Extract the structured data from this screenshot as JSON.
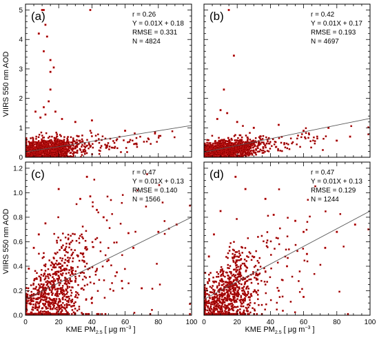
{
  "y_axis_label": "VIIRS 550 nm AOD",
  "x_axis_label_parts": {
    "pre": "KME PM",
    "sub": "2.5",
    "mid": " [ μg m",
    "sup": "−3",
    "post": " ]"
  },
  "colors": {
    "points": "#8b0000",
    "points_halo": "#ff2a2a",
    "fit_line": "#555555",
    "axes": "#000000"
  },
  "chart_data": [
    {
      "type": "scatter",
      "panel": "(a)",
      "stats": {
        "r": "r = 0.26",
        "eq": "Y = 0.01X + 0.18",
        "rmse": "RMSE = 0.331",
        "n": "N =   4824"
      },
      "xlim": [
        0,
        100
      ],
      "ylim": [
        0,
        5.2
      ],
      "x_ticks": [],
      "y_ticks": [
        "0",
        "1",
        "2",
        "3",
        "4",
        "5"
      ],
      "fit": {
        "slope": 0.009,
        "intercept": 0.18
      },
      "n_points": 4824,
      "cluster": {
        "x_center": 12,
        "x_spread": 9,
        "y_base": 0.22,
        "y_spread": 0.18
      },
      "outliers": [
        [
          10,
          5.0
        ],
        [
          11,
          5.0
        ],
        [
          39,
          5.0
        ],
        [
          12,
          4.5
        ],
        [
          8,
          4.2
        ],
        [
          13,
          4.1
        ],
        [
          15,
          3.3
        ],
        [
          11,
          3.6
        ],
        [
          15,
          2.3
        ],
        [
          17,
          3.05
        ],
        [
          15,
          2.9
        ],
        [
          14,
          1.9
        ],
        [
          11,
          1.7
        ],
        [
          18,
          1.55
        ],
        [
          6,
          1.55
        ],
        [
          12,
          1.45
        ],
        [
          9,
          1.35
        ],
        [
          22,
          1.3
        ],
        [
          30,
          1.2
        ],
        [
          40,
          1.25
        ],
        [
          60,
          0.9
        ],
        [
          78,
          0.85
        ]
      ]
    },
    {
      "type": "scatter",
      "panel": "(b)",
      "stats": {
        "r": "r = 0.42",
        "eq": "Y = 0.01X + 0.17",
        "rmse": "RMSE = 0.193",
        "n": "N =   4697"
      },
      "xlim": [
        0,
        100
      ],
      "ylim": [
        0,
        5.2
      ],
      "x_ticks": [],
      "y_ticks": [],
      "fit": {
        "slope": 0.0115,
        "intercept": 0.17
      },
      "n_points": 4697,
      "cluster": {
        "x_center": 12,
        "x_spread": 9,
        "y_base": 0.2,
        "y_spread": 0.16
      },
      "outliers": [
        [
          15,
          5.0
        ],
        [
          18,
          3.45
        ],
        [
          12,
          2.3
        ],
        [
          10,
          1.6
        ],
        [
          14,
          1.5
        ],
        [
          8,
          1.3
        ],
        [
          20,
          1.2
        ],
        [
          30,
          1.0
        ],
        [
          45,
          1.1
        ],
        [
          60,
          0.9
        ],
        [
          75,
          1.0
        ],
        [
          88,
          0.7
        ]
      ]
    },
    {
      "type": "scatter",
      "panel": "(c)",
      "stats": {
        "r": "r = 0.47",
        "eq": "Y = 0.01X + 0.13",
        "rmse": "RMSE = 0.140",
        "n": "N =   1566"
      },
      "xlim": [
        0,
        100
      ],
      "ylim": [
        0,
        1.25
      ],
      "x_ticks": [
        "0",
        "20",
        "40",
        "60",
        "80",
        "100"
      ],
      "y_ticks": [
        "0.0",
        "0.2",
        "0.4",
        "0.6",
        "0.8",
        "1.0",
        "1.2"
      ],
      "fit": {
        "slope": 0.0067,
        "intercept": 0.13
      },
      "n_points": 1566,
      "cluster": {
        "x_center": 15,
        "x_spread": 11,
        "y_base": 0.15,
        "y_spread": 0.16
      },
      "outliers": [
        [
          37,
          1.13
        ],
        [
          20,
          1.03
        ],
        [
          33,
          0.95
        ],
        [
          39,
          0.97
        ],
        [
          43,
          0.86
        ],
        [
          47,
          0.8
        ],
        [
          62,
          0.67
        ],
        [
          80,
          0.68
        ],
        [
          91,
          0.74
        ],
        [
          65,
          0.55
        ],
        [
          50,
          0.45
        ],
        [
          55,
          0.35
        ],
        [
          58,
          0.28
        ],
        [
          70,
          0.22
        ],
        [
          12,
          0.75
        ],
        [
          8,
          0.66
        ],
        [
          5,
          0.55
        ],
        [
          2,
          0.38
        ],
        [
          30,
          0.15
        ],
        [
          40,
          0.1
        ]
      ]
    },
    {
      "type": "scatter",
      "panel": "(d)",
      "stats": {
        "r": "r = 0.47",
        "eq": "Y = 0.01X + 0.13",
        "rmse": "RMSE = 0.129",
        "n": "N =   1244"
      },
      "xlim": [
        0,
        100
      ],
      "ylim": [
        0,
        1.25
      ],
      "x_ticks": [
        "0",
        "20",
        "40",
        "60",
        "80",
        "100"
      ],
      "y_ticks": [],
      "fit": {
        "slope": 0.0072,
        "intercept": 0.13
      },
      "n_points": 1244,
      "cluster": {
        "x_center": 14,
        "x_spread": 10,
        "y_base": 0.14,
        "y_spread": 0.15
      },
      "outliers": [
        [
          19,
          1.13
        ],
        [
          25,
          1.03
        ],
        [
          37,
          0.95
        ],
        [
          42,
          0.82
        ],
        [
          55,
          0.77
        ],
        [
          60,
          0.68
        ],
        [
          91,
          0.74
        ],
        [
          73,
          0.55
        ],
        [
          62,
          0.5
        ],
        [
          50,
          0.4
        ],
        [
          10,
          0.85
        ],
        [
          6,
          0.66
        ],
        [
          3,
          0.48
        ],
        [
          45,
          0.2
        ],
        [
          60,
          0.15
        ],
        [
          80,
          0.68
        ]
      ]
    }
  ]
}
